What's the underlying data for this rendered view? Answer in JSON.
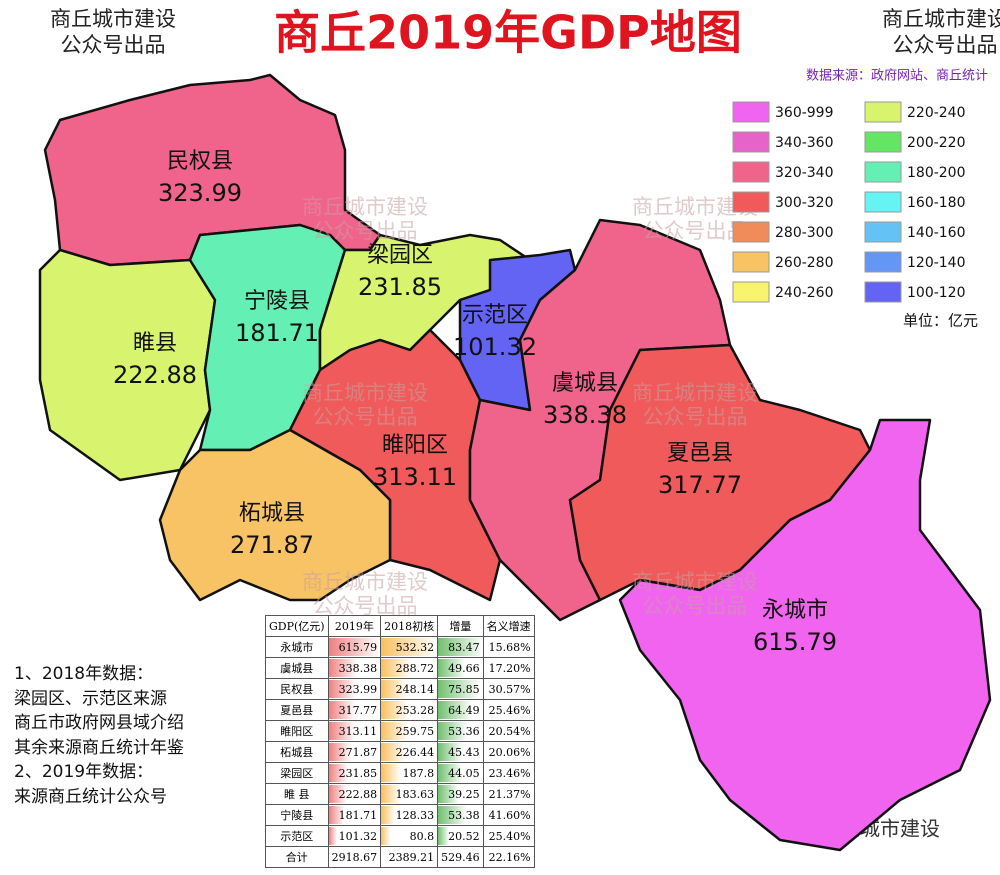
{
  "header": {
    "title": "商丘2019年GDP地图",
    "logo": [
      "商丘城市建设",
      "公众号出品"
    ],
    "source": "数据来源：政府网站、商丘统计"
  },
  "legend": {
    "items": [
      {
        "label": "360-999",
        "color": "#f064f0"
      },
      {
        "label": "340-360",
        "color": "#e664c8"
      },
      {
        "label": "320-340",
        "color": "#f0648c"
      },
      {
        "label": "300-320",
        "color": "#f05a5a"
      },
      {
        "label": "280-300",
        "color": "#f08c5a"
      },
      {
        "label": "260-280",
        "color": "#f8c364"
      },
      {
        "label": "240-260",
        "color": "#f8f46e"
      },
      {
        "label": "220-240",
        "color": "#d8f46e"
      },
      {
        "label": "200-220",
        "color": "#64e664"
      },
      {
        "label": "180-200",
        "color": "#64f0b4"
      },
      {
        "label": "160-180",
        "color": "#64f4f4"
      },
      {
        "label": "140-160",
        "color": "#64c3f4"
      },
      {
        "label": "120-140",
        "color": "#6496f4"
      },
      {
        "label": "100-120",
        "color": "#6464f4"
      }
    ],
    "unit": "单位：亿元"
  },
  "regions": [
    {
      "name": "民权县",
      "value": 323.99,
      "color": "#f0648c"
    },
    {
      "name": "睢县",
      "value": 222.88,
      "color": "#d8f46e"
    },
    {
      "name": "宁陵县",
      "value": 181.71,
      "color": "#64f0b4"
    },
    {
      "name": "梁园区",
      "value": 231.85,
      "color": "#d8f46e"
    },
    {
      "name": "示范区",
      "value": 101.32,
      "color": "#6464f4"
    },
    {
      "name": "睢阳区",
      "value": 313.11,
      "color": "#f05a5a"
    },
    {
      "name": "柘城县",
      "value": 271.87,
      "color": "#f8c364"
    },
    {
      "name": "虞城县",
      "value": 338.38,
      "color": "#f0648c"
    },
    {
      "name": "夏邑县",
      "value": 317.77,
      "color": "#f05a5a"
    },
    {
      "name": "永城市",
      "value": 615.79,
      "color": "#f064f0"
    }
  ],
  "table": {
    "header": [
      "GDP(亿元)",
      "2019年",
      "2018初核",
      "增量",
      "名义增速"
    ],
    "rows": [
      [
        "永城市",
        615.79,
        532.32,
        83.47,
        "15.68%"
      ],
      [
        "虞城县",
        338.38,
        288.72,
        49.66,
        "17.20%"
      ],
      [
        "民权县",
        323.99,
        248.14,
        75.85,
        "30.57%"
      ],
      [
        "夏邑县",
        317.77,
        253.28,
        64.49,
        "25.46%"
      ],
      [
        "睢阳区",
        313.11,
        259.75,
        53.36,
        "20.54%"
      ],
      [
        "柘城县",
        271.87,
        226.44,
        45.43,
        "20.06%"
      ],
      [
        "梁园区",
        231.85,
        187.8,
        44.05,
        "23.46%"
      ],
      [
        "睢 县",
        222.88,
        183.63,
        39.25,
        "21.37%"
      ],
      [
        "宁陵县",
        181.71,
        128.33,
        53.38,
        "41.60%"
      ],
      [
        "示范区",
        101.32,
        80.8,
        20.52,
        "25.40%"
      ]
    ],
    "total": [
      "合计",
      2918.67,
      2389.21,
      529.46,
      "22.16%"
    ]
  },
  "notes": [
    "1、2018年数据：",
    "梁园区、示范区来源",
    "商丘市政府网县域介绍",
    "其余来源商丘统计年鉴",
    "2、2019年数据：",
    "来源商丘统计公众号"
  ],
  "footer": "商丘城市建设"
}
